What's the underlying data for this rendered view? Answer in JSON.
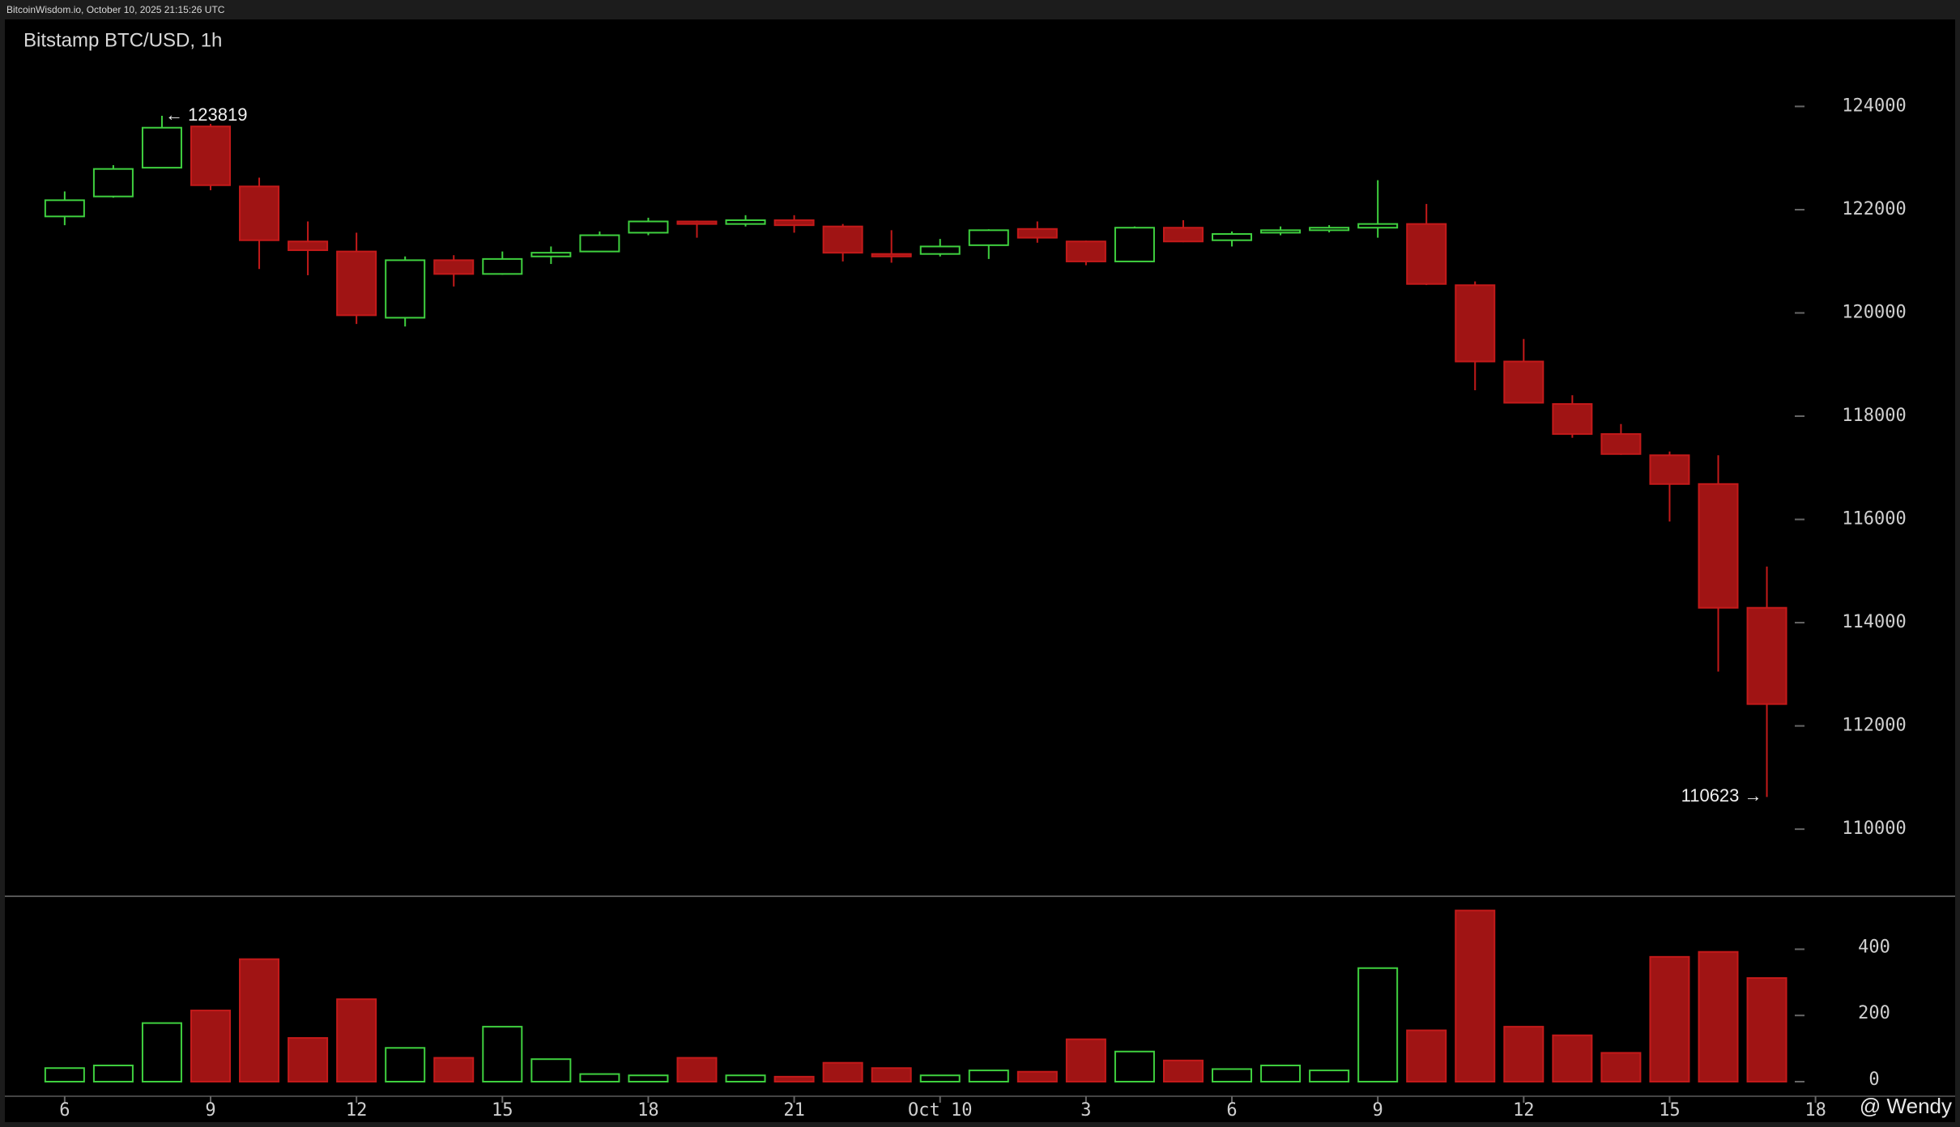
{
  "chart_data": {
    "type": "candlestick",
    "header": "BitcoinWisdom.io, October 10, 2025 21:15:26 UTC",
    "title": "Bitstamp BTC/USD, 1h",
    "watermark": "@ Wendy",
    "up_color": "#3fd03f",
    "down_color": "#a01414",
    "open": [
      121869,
      122256,
      122813,
      123612,
      122450,
      121384,
      121190,
      119907,
      121021,
      120755,
      121094,
      121190,
      121554,
      121772,
      121723,
      121796,
      121675,
      121142,
      121142,
      121312,
      121627,
      121384,
      120997,
      121651,
      121408,
      121554,
      121602,
      121651,
      121723,
      120537,
      119059,
      118236,
      117654,
      117243,
      116686,
      114288
    ],
    "high": [
      122353,
      122862,
      123819,
      123661,
      122620,
      121772,
      121554,
      121094,
      121118,
      121190,
      121287,
      121578,
      121844,
      121790,
      121893,
      121893,
      121723,
      121602,
      121433,
      121620,
      121772,
      121400,
      121675,
      121796,
      121578,
      121675,
      121700,
      122571,
      122111,
      120610,
      119495,
      118405,
      117848,
      117315,
      117243,
      115087
    ],
    "low": [
      121699,
      122232,
      122800,
      122377,
      120851,
      120730,
      119786,
      119737,
      120512,
      120740,
      120948,
      121180,
      121505,
      121457,
      121675,
      121554,
      120997,
      120973,
      121094,
      121045,
      121360,
      120924,
      120990,
      121370,
      121287,
      121505,
      121560,
      121457,
      120540,
      118502,
      118250,
      117582,
      117250,
      115959,
      113053,
      110623
    ],
    "close": [
      122183,
      122789,
      123588,
      122474,
      121408,
      121215,
      119955,
      121021,
      120755,
      121045,
      121166,
      121505,
      121772,
      121723,
      121796,
      121699,
      121166,
      121094,
      121287,
      121602,
      121457,
      120997,
      121651,
      121384,
      121529,
      121602,
      121651,
      121723,
      120561,
      119059,
      118260,
      117654,
      117267,
      116686,
      114288,
      112423
    ],
    "volume": [
      41,
      49,
      177,
      215,
      370,
      132,
      249,
      102,
      72,
      166,
      68,
      23,
      19,
      72,
      19,
      15,
      57,
      41,
      19,
      34,
      30,
      128,
      91,
      64,
      38,
      49,
      34,
      343,
      155,
      517,
      166,
      140,
      87,
      377,
      392,
      313
    ],
    "xlim": [
      -1.23,
      36.14
    ],
    "xticks": [
      {
        "value": 0,
        "label": "6"
      },
      {
        "value": 3,
        "label": "9"
      },
      {
        "value": 6,
        "label": "12"
      },
      {
        "value": 9,
        "label": "15"
      },
      {
        "value": 12,
        "label": "18"
      },
      {
        "value": 15,
        "label": "21"
      },
      {
        "value": 18,
        "label": "Oct 10"
      },
      {
        "value": 21,
        "label": "3"
      },
      {
        "value": 24,
        "label": "6"
      },
      {
        "value": 27,
        "label": "9"
      },
      {
        "value": 30,
        "label": "12"
      },
      {
        "value": 33,
        "label": "15"
      },
      {
        "value": 36,
        "label": "18"
      }
    ],
    "ylim": [
      108700,
      125450
    ],
    "yticks": [
      110000,
      112000,
      114000,
      116000,
      118000,
      120000,
      122000,
      124000
    ],
    "volume_ylim": [
      0,
      560
    ],
    "volume_yticks": [
      0,
      200,
      400
    ],
    "annotations": [
      {
        "value": 123819,
        "label": "← 123819"
      },
      {
        "value": 110623,
        "label": "110623 →"
      }
    ]
  }
}
